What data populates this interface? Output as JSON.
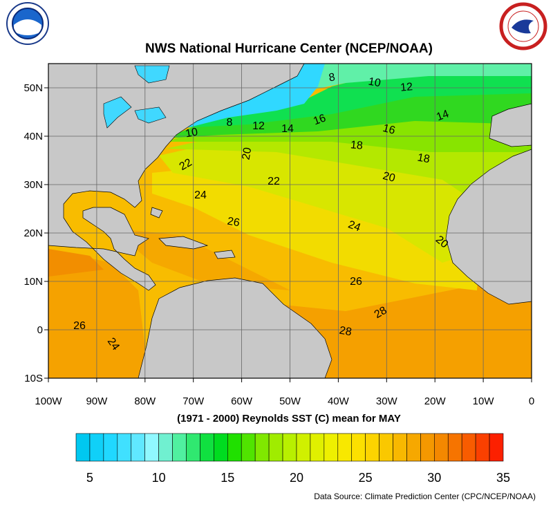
{
  "map": {
    "title": "NWS National Hurricane Center (NCEP/NOAA)",
    "subtitle": "(1971 - 2000) Reynolds SST (C) mean for MAY",
    "source": "Data Source: Climate Prediction Center (CPC/NCEP/NOAA)",
    "xlim": [
      -100,
      0
    ],
    "ylim": [
      -10,
      55
    ],
    "xticks": [
      {
        "value": -100,
        "label": "100W"
      },
      {
        "value": -90,
        "label": "90W"
      },
      {
        "value": -80,
        "label": "80W"
      },
      {
        "value": -70,
        "label": "70W"
      },
      {
        "value": -60,
        "label": "60W"
      },
      {
        "value": -50,
        "label": "50W"
      },
      {
        "value": -40,
        "label": "40W"
      },
      {
        "value": -30,
        "label": "30W"
      },
      {
        "value": -20,
        "label": "20W"
      },
      {
        "value": -10,
        "label": "10W"
      },
      0
    ],
    "yticks": [
      {
        "value": 50,
        "label": "50N"
      },
      {
        "value": 40,
        "label": "40N"
      },
      {
        "value": 30,
        "label": "30N"
      },
      {
        "value": 20,
        "label": "20N"
      },
      {
        "value": 10,
        "label": "10N"
      },
      0,
      {
        "value": -10,
        "label": "10S"
      }
    ],
    "grid": true,
    "contour_labels": [
      8,
      10,
      12,
      14,
      8,
      12,
      14,
      16,
      16,
      10,
      20,
      18,
      18,
      22,
      22,
      20,
      24,
      26,
      24,
      20,
      26,
      28,
      26,
      28,
      24
    ],
    "colorbar": {
      "lim": [
        4,
        35
      ],
      "ticks": [
        5,
        10,
        15,
        20,
        25,
        30,
        35
      ],
      "colors": [
        "#00c8f0",
        "#10d0f8",
        "#20d8ff",
        "#40e0ff",
        "#60e8ff",
        "#90f8ff",
        "#70f0d0",
        "#50f0a0",
        "#30e870",
        "#10e040",
        "#00dc20",
        "#20e000",
        "#50e400",
        "#80e800",
        "#a0ec00",
        "#b8f000",
        "#d0f000",
        "#e0f000",
        "#eef000",
        "#f8e800",
        "#fce000",
        "#fcd400",
        "#fac800",
        "#f8b800",
        "#f6a800",
        "#f49800",
        "#f48800",
        "#f67400",
        "#f85c00",
        "#fa4000",
        "#fc2000"
      ]
    }
  }
}
